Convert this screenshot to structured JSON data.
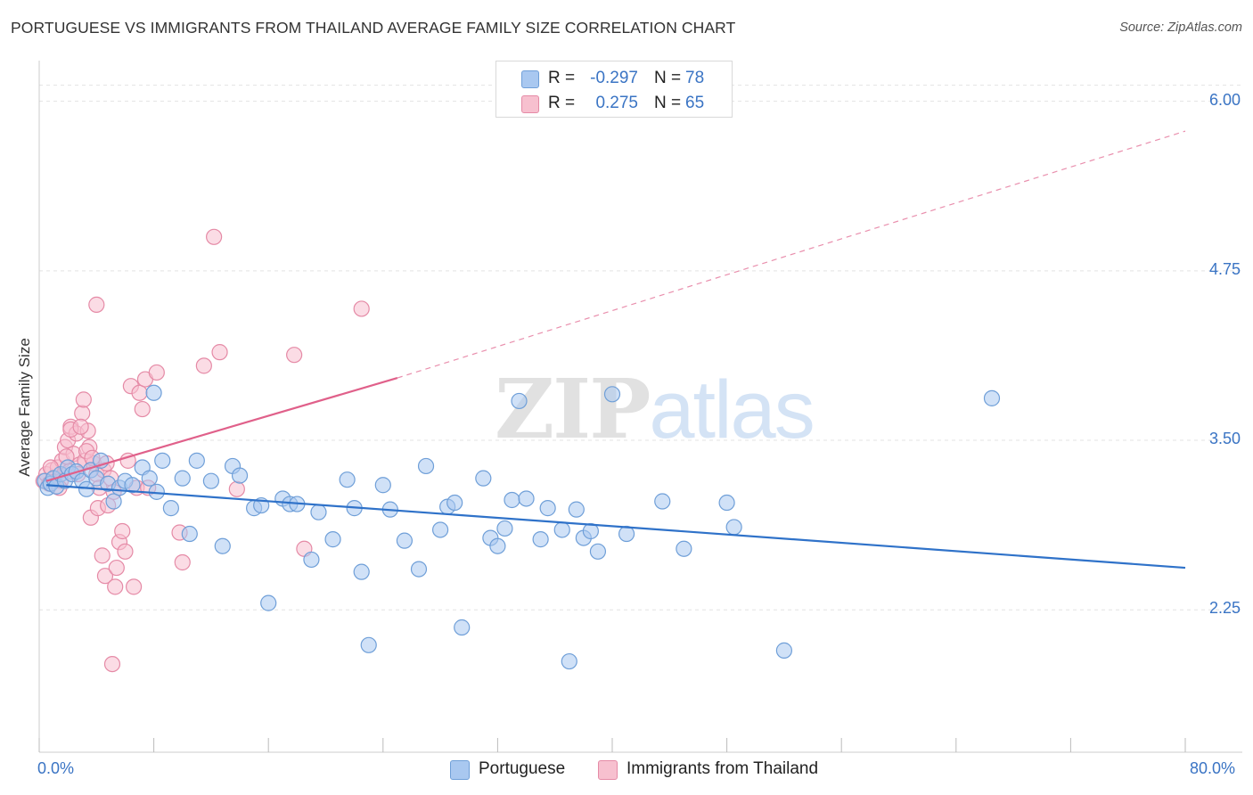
{
  "title": "PORTUGUESE VS IMMIGRANTS FROM THAILAND AVERAGE FAMILY SIZE CORRELATION CHART",
  "source": "Source: ZipAtlas.com",
  "watermark": {
    "zip": "ZIP",
    "atlas": "atlas"
  },
  "legend_top": [
    {
      "label": "R =",
      "r": "-0.297",
      "n_label": "N =",
      "n": "78",
      "color": "#a9c8f0",
      "border": "#6f9fd8"
    },
    {
      "label": "R =",
      "r": "0.275",
      "n_label": "N =",
      "n": "65",
      "color": "#f7c0cf",
      "border": "#e58aa6"
    }
  ],
  "chart_data": {
    "type": "scatter",
    "title": "PORTUGUESE VS IMMIGRANTS FROM THAILAND AVERAGE FAMILY SIZE CORRELATION CHART",
    "xlabel": "",
    "ylabel": "Average Family Size",
    "xlim": [
      0.0,
      80.0
    ],
    "ylim": [
      1.2,
      6.3
    ],
    "x_tick_labels": [
      "0.0%",
      "80.0%"
    ],
    "y_ticks": [
      2.25,
      3.5,
      4.75,
      6.0
    ],
    "y_tick_labels": [
      "2.25",
      "3.50",
      "4.75",
      "6.00"
    ],
    "grid": true,
    "legend_position": "top-center and bottom",
    "series": [
      {
        "name": "Portuguese",
        "color": "#6f9fd8",
        "fill": "#a9c8f0",
        "trend": {
          "x0": 0.5,
          "y0": 3.17,
          "x1": 80.0,
          "y1": 2.56,
          "style": "solid",
          "color": "#2f72c9"
        },
        "points": [
          [
            0.4,
            3.2
          ],
          [
            0.6,
            3.15
          ],
          [
            0.8,
            3.18
          ],
          [
            1.0,
            3.22
          ],
          [
            1.2,
            3.16
          ],
          [
            1.5,
            3.25
          ],
          [
            1.8,
            3.2
          ],
          [
            2.0,
            3.3
          ],
          [
            2.3,
            3.25
          ],
          [
            2.6,
            3.27
          ],
          [
            3.0,
            3.2
          ],
          [
            3.3,
            3.14
          ],
          [
            3.6,
            3.28
          ],
          [
            4.0,
            3.22
          ],
          [
            4.3,
            3.35
          ],
          [
            4.8,
            3.18
          ],
          [
            5.2,
            3.05
          ],
          [
            5.6,
            3.15
          ],
          [
            6.0,
            3.2
          ],
          [
            6.5,
            3.17
          ],
          [
            7.2,
            3.3
          ],
          [
            7.7,
            3.22
          ],
          [
            8.2,
            3.12
          ],
          [
            8.6,
            3.35
          ],
          [
            9.2,
            3.0
          ],
          [
            10.0,
            3.22
          ],
          [
            10.5,
            2.81
          ],
          [
            11.0,
            3.35
          ],
          [
            12.0,
            3.2
          ],
          [
            12.8,
            2.72
          ],
          [
            13.5,
            3.31
          ],
          [
            14.0,
            3.24
          ],
          [
            15.0,
            3.0
          ],
          [
            15.5,
            3.02
          ],
          [
            16.0,
            2.3
          ],
          [
            17.0,
            3.07
          ],
          [
            17.5,
            3.03
          ],
          [
            18.0,
            3.03
          ],
          [
            19.0,
            2.62
          ],
          [
            19.5,
            2.97
          ],
          [
            20.5,
            2.77
          ],
          [
            21.5,
            3.21
          ],
          [
            22.0,
            3.0
          ],
          [
            22.5,
            2.53
          ],
          [
            23.0,
            1.99
          ],
          [
            24.0,
            3.17
          ],
          [
            24.5,
            2.99
          ],
          [
            25.5,
            2.76
          ],
          [
            26.5,
            2.55
          ],
          [
            27.0,
            3.31
          ],
          [
            28.0,
            2.84
          ],
          [
            28.5,
            3.01
          ],
          [
            29.0,
            3.04
          ],
          [
            29.5,
            2.12
          ],
          [
            31.0,
            3.22
          ],
          [
            31.5,
            2.78
          ],
          [
            32.0,
            2.72
          ],
          [
            32.5,
            2.85
          ],
          [
            33.0,
            3.06
          ],
          [
            33.5,
            3.79
          ],
          [
            34.0,
            3.07
          ],
          [
            35.0,
            2.77
          ],
          [
            35.5,
            3.0
          ],
          [
            36.5,
            2.84
          ],
          [
            37.0,
            1.87
          ],
          [
            37.5,
            2.99
          ],
          [
            38.0,
            2.78
          ],
          [
            38.5,
            2.83
          ],
          [
            39.0,
            2.68
          ],
          [
            40.0,
            3.84
          ],
          [
            41.0,
            2.81
          ],
          [
            43.5,
            3.05
          ],
          [
            45.0,
            2.7
          ],
          [
            48.0,
            3.04
          ],
          [
            48.5,
            2.86
          ],
          [
            52.0,
            1.95
          ],
          [
            66.5,
            3.81
          ],
          [
            8.0,
            3.85
          ]
        ]
      },
      {
        "name": "Immigrants from Thailand",
        "color": "#e58aa6",
        "fill": "#f7c0cf",
        "trend": {
          "x0": 0.5,
          "y0": 3.2,
          "x1": 25.0,
          "y1": 3.96,
          "style": "solid",
          "color": "#e0608a",
          "extended": {
            "x1": 80.0,
            "y1": 5.78,
            "style": "dashed"
          }
        },
        "points": [
          [
            0.3,
            3.2
          ],
          [
            0.5,
            3.25
          ],
          [
            0.7,
            3.18
          ],
          [
            0.9,
            3.28
          ],
          [
            1.1,
            3.22
          ],
          [
            1.3,
            3.3
          ],
          [
            1.5,
            3.2
          ],
          [
            1.6,
            3.35
          ],
          [
            1.8,
            3.45
          ],
          [
            2.0,
            3.5
          ],
          [
            2.1,
            3.27
          ],
          [
            2.2,
            3.6
          ],
          [
            2.4,
            3.4
          ],
          [
            2.6,
            3.55
          ],
          [
            2.8,
            3.32
          ],
          [
            3.0,
            3.7
          ],
          [
            3.1,
            3.8
          ],
          [
            3.2,
            3.35
          ],
          [
            3.4,
            3.57
          ],
          [
            3.5,
            3.45
          ],
          [
            3.6,
            2.93
          ],
          [
            3.8,
            3.33
          ],
          [
            4.0,
            3.25
          ],
          [
            4.1,
            3.0
          ],
          [
            4.2,
            3.15
          ],
          [
            4.4,
            2.65
          ],
          [
            4.5,
            3.28
          ],
          [
            4.6,
            2.5
          ],
          [
            4.7,
            3.33
          ],
          [
            4.8,
            3.02
          ],
          [
            5.0,
            3.22
          ],
          [
            5.2,
            3.12
          ],
          [
            5.3,
            2.42
          ],
          [
            5.4,
            2.56
          ],
          [
            5.6,
            2.75
          ],
          [
            5.8,
            2.83
          ],
          [
            6.0,
            2.68
          ],
          [
            6.2,
            3.35
          ],
          [
            6.4,
            3.9
          ],
          [
            6.6,
            2.42
          ],
          [
            6.8,
            3.15
          ],
          [
            7.0,
            3.85
          ],
          [
            7.2,
            3.73
          ],
          [
            7.4,
            3.95
          ],
          [
            7.6,
            3.15
          ],
          [
            8.2,
            4.0
          ],
          [
            9.8,
            2.82
          ],
          [
            10.0,
            2.6
          ],
          [
            11.5,
            4.05
          ],
          [
            12.2,
            5.0
          ],
          [
            12.6,
            4.15
          ],
          [
            13.8,
            3.14
          ],
          [
            17.8,
            4.13
          ],
          [
            18.5,
            2.7
          ],
          [
            22.5,
            4.47
          ],
          [
            4.0,
            4.5
          ],
          [
            5.1,
            1.85
          ],
          [
            2.2,
            3.58
          ],
          [
            1.9,
            3.38
          ],
          [
            3.3,
            3.42
          ],
          [
            2.7,
            3.25
          ],
          [
            1.4,
            3.15
          ],
          [
            0.8,
            3.3
          ],
          [
            2.9,
            3.6
          ],
          [
            3.7,
            3.37
          ]
        ]
      }
    ]
  },
  "bottom_legend": [
    {
      "label": "Portuguese",
      "color": "#a9c8f0",
      "border": "#6f9fd8"
    },
    {
      "label": "Immigrants from Thailand",
      "color": "#f7c0cf",
      "border": "#e58aa6"
    }
  ]
}
